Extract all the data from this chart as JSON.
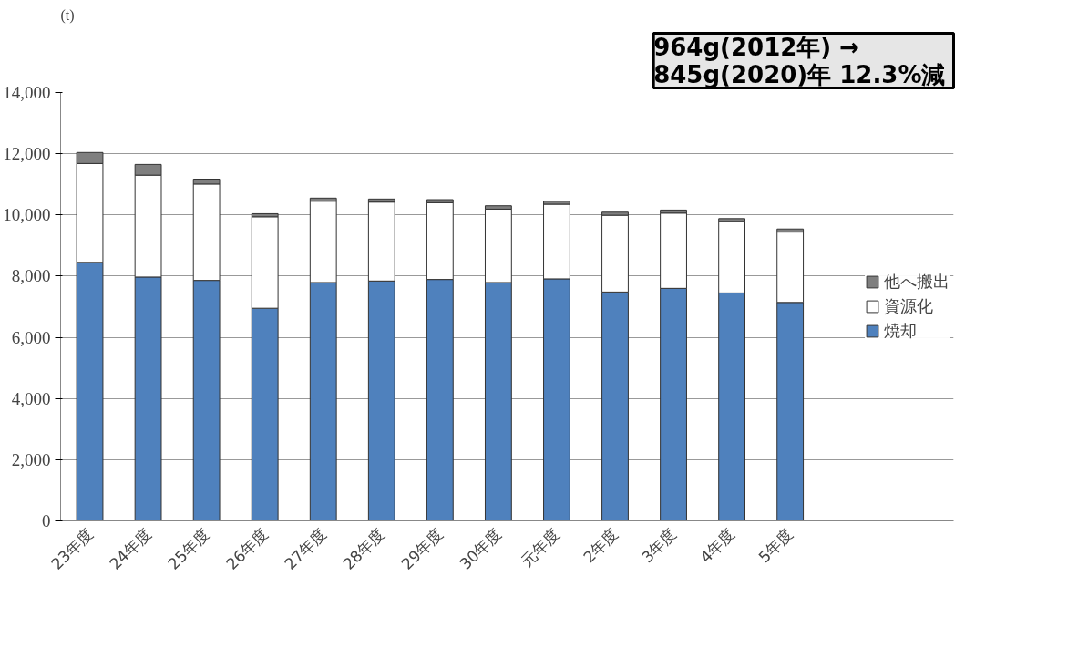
{
  "chart_data": {
    "type": "bar",
    "stacked": true,
    "ylabel": "(t)",
    "categories": [
      "23年度",
      "24年度",
      "25年度",
      "26年度",
      "27年度",
      "28年度",
      "29年度",
      "30年度",
      "元年度",
      "2年度",
      "3年度",
      "4年度",
      "5年度"
    ],
    "series": [
      {
        "name": "焼却",
        "color": "#4f81bd",
        "values": [
          8450,
          7970,
          7860,
          6950,
          7790,
          7840,
          7890,
          7790,
          7910,
          7480,
          7600,
          7450,
          7140
        ]
      },
      {
        "name": "資源化",
        "color": "#ffffff",
        "values": [
          3230,
          3330,
          3150,
          2990,
          2660,
          2580,
          2510,
          2400,
          2440,
          2510,
          2460,
          2330,
          2300
        ]
      },
      {
        "name": "他へ搬出",
        "color": "#7f7f7f",
        "values": [
          360,
          350,
          160,
          100,
          100,
          100,
          100,
          110,
          100,
          100,
          100,
          100,
          100
        ]
      }
    ],
    "ylim": [
      0,
      14000
    ],
    "yticks": [
      {
        "value": 0,
        "label": "0"
      },
      {
        "value": 2000,
        "label": "2,000"
      },
      {
        "value": 4000,
        "label": "4,000"
      },
      {
        "value": 6000,
        "label": "6,000"
      },
      {
        "value": 8000,
        "label": "8,000"
      },
      {
        "value": 10000,
        "label": "10,000"
      },
      {
        "value": 12000,
        "label": "12,000"
      },
      {
        "value": 14000,
        "label": "14,000"
      }
    ],
    "grid": "y",
    "legend": "right",
    "annotations": [
      "964g(2012年) →\n 845g(2020)年 12.3%減"
    ]
  }
}
